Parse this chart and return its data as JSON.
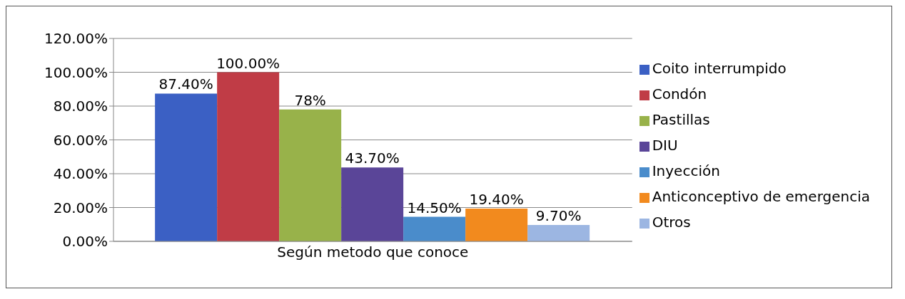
{
  "chart_data": {
    "type": "bar",
    "categories": [
      "Según metodo que conoce"
    ],
    "series": [
      {
        "name": "Coito interrumpido",
        "color": "#3b60c4",
        "values": [
          87.4
        ],
        "value_labels": [
          "87.40%"
        ]
      },
      {
        "name": "Condón",
        "color": "#c03c46",
        "values": [
          100
        ],
        "value_labels": [
          "100.00%"
        ]
      },
      {
        "name": "Pastillas",
        "color": "#98b24a",
        "values": [
          78
        ],
        "value_labels": [
          "78%"
        ]
      },
      {
        "name": "DIU",
        "color": "#5a4598",
        "values": [
          43.7
        ],
        "value_labels": [
          "43.70%"
        ]
      },
      {
        "name": "Inyección",
        "color": "#4a8ccb",
        "values": [
          14.5
        ],
        "value_labels": [
          "14.50%"
        ]
      },
      {
        "name": "Anticonceptivo de emergencia",
        "color": "#f28a1e",
        "values": [
          19.4
        ],
        "value_labels": [
          "19.40%"
        ]
      },
      {
        "name": "Otros",
        "color": "#9cb6e2",
        "values": [
          9.7
        ],
        "value_labels": [
          "9.70%"
        ]
      }
    ],
    "ylim": [
      0,
      120
    ],
    "yticks": [
      {
        "value": 0,
        "label": "0.00%"
      },
      {
        "value": 20,
        "label": "20.00%"
      },
      {
        "value": 40,
        "label": "40.00%"
      },
      {
        "value": 60,
        "label": "60.00%"
      },
      {
        "value": 80,
        "label": "80.00%"
      },
      {
        "value": 100,
        "label": "100.00%"
      },
      {
        "value": 120,
        "label": "120.00%"
      }
    ],
    "grid": "y",
    "legend": "right"
  }
}
